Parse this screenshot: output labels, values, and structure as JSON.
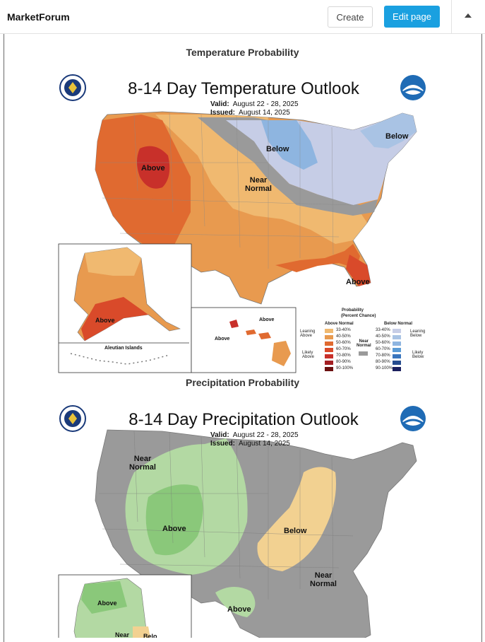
{
  "header": {
    "brand": "MarketForum",
    "create_label": "Create",
    "edit_label": "Edit page",
    "collapse_icon": "caret-up-icon"
  },
  "sections": {
    "temp_heading": "Temperature Probability",
    "precip_heading": "Precipitation Probability"
  },
  "temp_map": {
    "title": "8-14 Day Temperature Outlook",
    "valid_label": "Valid:",
    "valid_value": "August 22 - 28, 2025",
    "issued_label": "Issued:",
    "issued_value": "August 14, 2025",
    "labels": {
      "above_west": "Above",
      "below_north": "Below",
      "below_ne": "Below",
      "near_normal_1": "Near",
      "near_normal_2": "Normal",
      "above_fl": "Above",
      "above_ak": "Above",
      "above_hi_1": "Above",
      "above_hi_2": "Above",
      "aleutian": "Aleutian Islands"
    },
    "legend": {
      "title_1": "Probability",
      "title_2": "(Percent Chance)",
      "above_normal": "Above Normal",
      "below_normal": "Below Normal",
      "leaning_above_1": "Leaning",
      "leaning_above_2": "Above",
      "likely_above_1": "Likely",
      "likely_above_2": "Above",
      "leaning_below_1": "Leaning",
      "leaning_below_2": "Below",
      "likely_below_1": "Likely",
      "likely_below_2": "Below",
      "near_1": "Near",
      "near_2": "Normal",
      "ranges": [
        "33-40%",
        "40-50%",
        "50-60%",
        "60-70%",
        "70-80%",
        "80-90%",
        "90-100%"
      ],
      "above_colors": [
        "#f0b970",
        "#e89a4f",
        "#e06a30",
        "#d94a2a",
        "#c8302a",
        "#a31e22",
        "#6b1010"
      ],
      "below_colors": [
        "#c6cde6",
        "#a9c3e4",
        "#8eb5e0",
        "#5b9bd5",
        "#3975bd",
        "#264c8f",
        "#1b1f5e"
      ],
      "near_color": "#9a9a9a"
    }
  },
  "precip_map": {
    "title": "8-14 Day Precipitation Outlook",
    "valid_label": "Valid:",
    "valid_value": "August 22 - 28, 2025",
    "issued_label": "Issued:",
    "issued_value": "August 14, 2025",
    "labels": {
      "near_nw_1": "Near",
      "near_nw_2": "Normal",
      "above_sw": "Above",
      "below_mw": "Below",
      "near_se_1": "Near",
      "near_se_2": "Normal",
      "above_tx": "Above",
      "above_ak": "Above",
      "near_ak": "Near",
      "below_ak": "Belo"
    }
  }
}
